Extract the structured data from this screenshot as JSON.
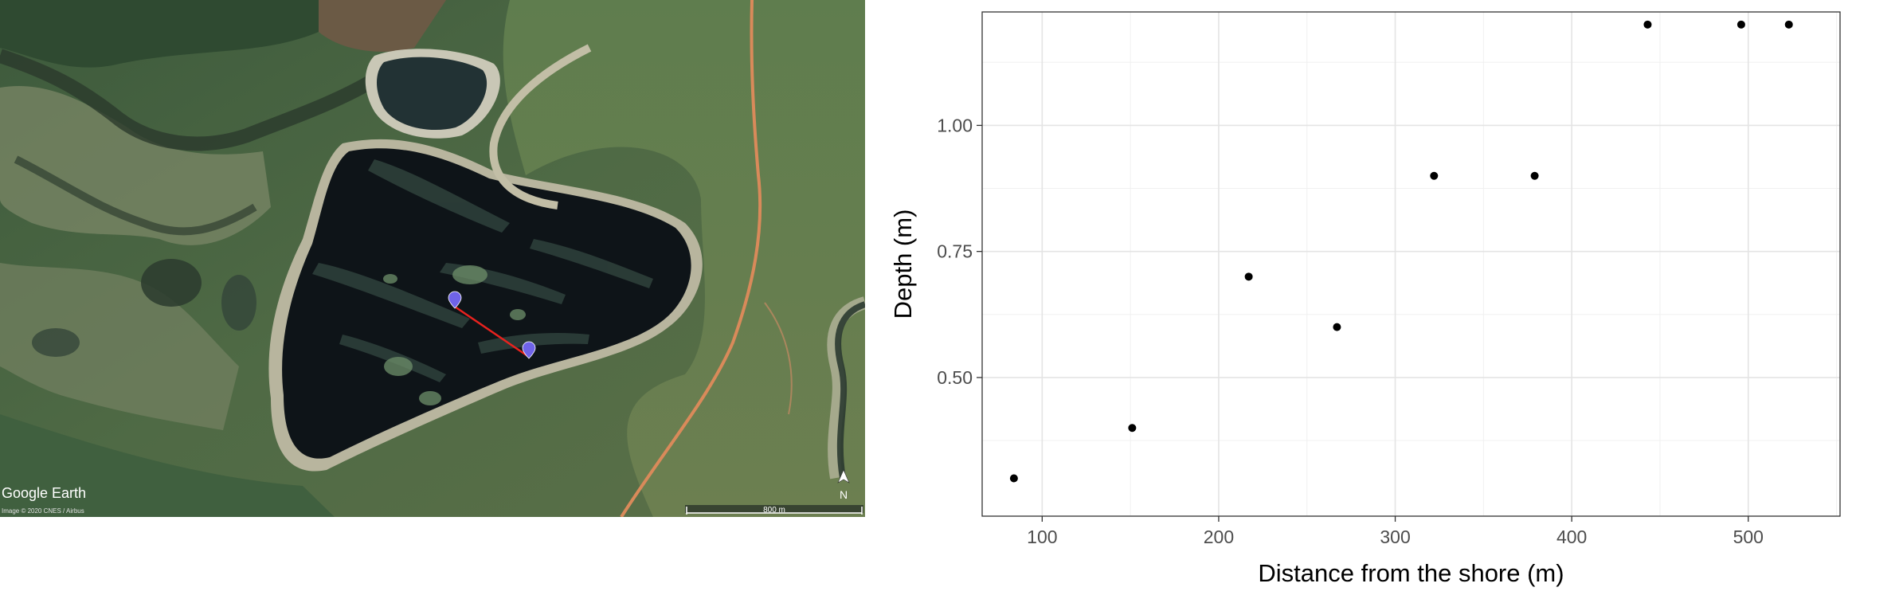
{
  "satellite": {
    "attribution": "Google Earth",
    "imagery_credit": "Image © 2020 CNES / Airbus",
    "scale_label": "800 m",
    "north_label": "N",
    "icons": [
      "location-pin-icon",
      "north-arrow-icon"
    ],
    "transect_color": "#e8221e",
    "marker_color": "#6f63e8"
  },
  "chart_data": {
    "type": "scatter",
    "xlabel": "Distance from the shore (m)",
    "ylabel": "Depth (m)",
    "xlim": [
      66,
      552
    ],
    "ylim": [
      0.225,
      1.225
    ],
    "xticks": [
      100,
      200,
      300,
      400,
      500
    ],
    "yticks": [
      0.5,
      0.75,
      1.0
    ],
    "xtick_labels": [
      "100",
      "200",
      "300",
      "400",
      "500"
    ],
    "ytick_labels": [
      "0.50",
      "0.75",
      "1.00"
    ],
    "grid": true,
    "legend": "none",
    "point_color": "#000000",
    "points": [
      {
        "x": 84,
        "y": 0.3
      },
      {
        "x": 151,
        "y": 0.4
      },
      {
        "x": 217,
        "y": 0.7
      },
      {
        "x": 267,
        "y": 0.6
      },
      {
        "x": 322,
        "y": 0.9
      },
      {
        "x": 379,
        "y": 0.9
      },
      {
        "x": 443,
        "y": 1.2
      },
      {
        "x": 496,
        "y": 1.2
      },
      {
        "x": 523,
        "y": 1.2
      }
    ]
  }
}
